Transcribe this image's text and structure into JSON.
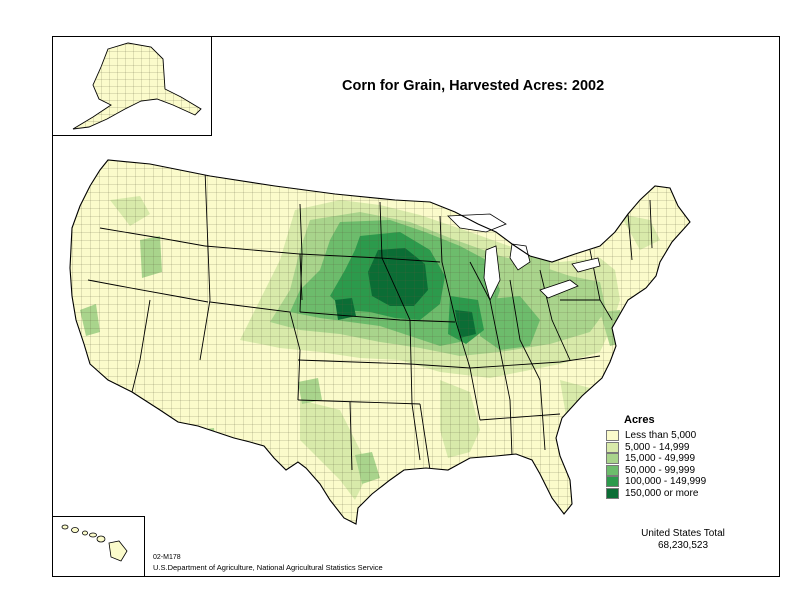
{
  "title": "Corn for Grain, Harvested Acres:  2002",
  "legend": {
    "title": "Acres",
    "items": [
      {
        "label": "Less than 5,000",
        "color": "#fbfbcb"
      },
      {
        "label": "5,000 - 14,999",
        "color": "#d8eaaa"
      },
      {
        "label": "15,000 - 49,999",
        "color": "#a9d48c"
      },
      {
        "label": "50,000 - 99,999",
        "color": "#6dbc6c"
      },
      {
        "label": "100,000 - 149,999",
        "color": "#2c9a4c"
      },
      {
        "label": "150,000 or more",
        "color": "#0b6d35"
      }
    ]
  },
  "total": {
    "label": "United States Total",
    "value": "68,230,523"
  },
  "map_code": "02-M178",
  "source": "U.S.Department of Agriculture, National Agricultural Statistics Service"
}
